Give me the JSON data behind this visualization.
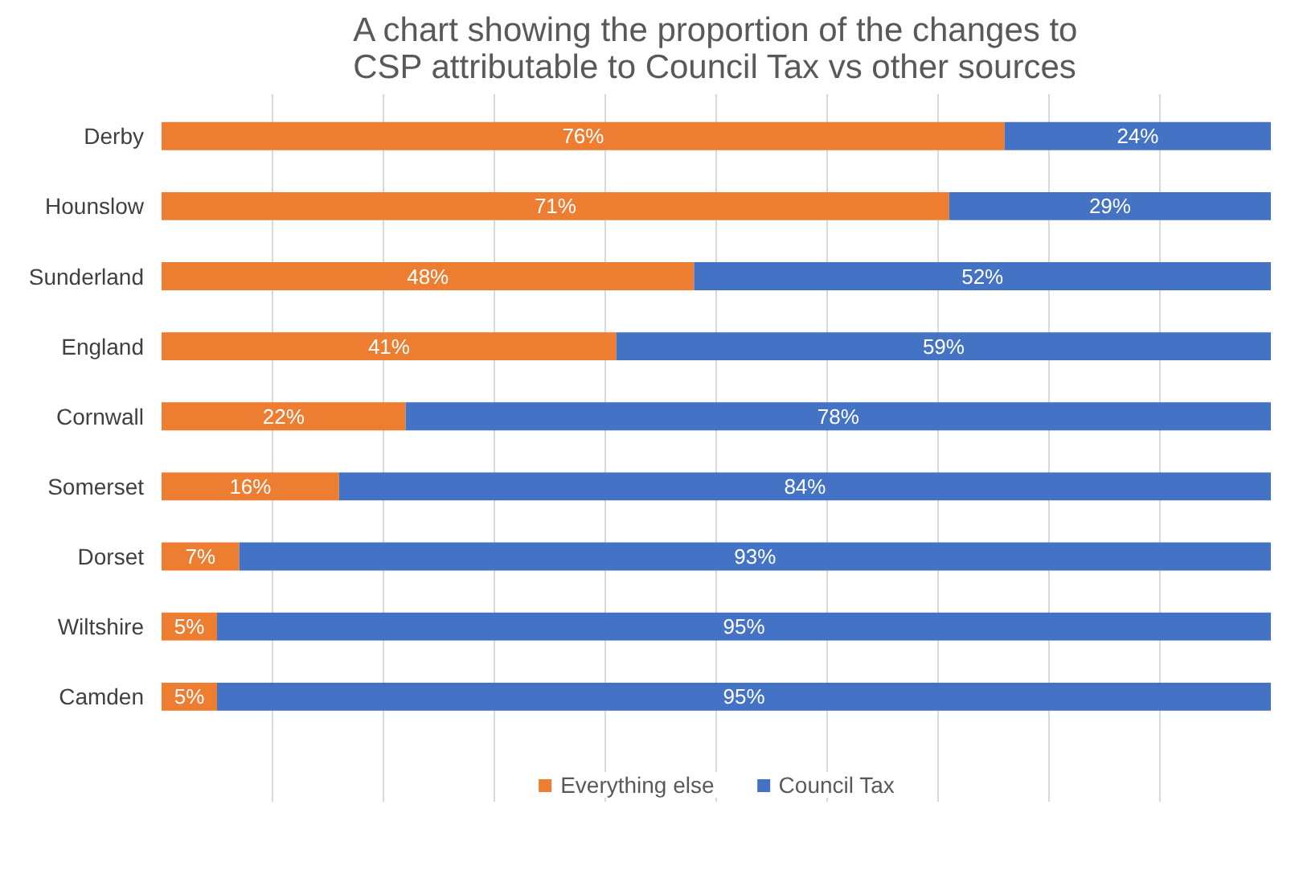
{
  "chart_data": {
    "type": "bar",
    "orientation": "horizontal",
    "stacked": true,
    "title": "A chart showing the proportion of the changes to CSP attributable to Council Tax vs other sources",
    "categories": [
      "Derby",
      "Hounslow",
      "Sunderland",
      "England",
      "Cornwall",
      "Somerset",
      "Dorset",
      "Wiltshire",
      "Camden"
    ],
    "series": [
      {
        "name": "Everything else",
        "color": "#ed7d31",
        "values": [
          76,
          71,
          48,
          41,
          22,
          16,
          7,
          5,
          5
        ],
        "value_labels": [
          "76%",
          "71%",
          "48%",
          "41%",
          "22%",
          "16%",
          "7%",
          "5%",
          "5%"
        ]
      },
      {
        "name": "Council Tax",
        "color": "#4472c4",
        "values": [
          24,
          29,
          52,
          59,
          78,
          84,
          93,
          95,
          95
        ],
        "value_labels": [
          "24%",
          "29%",
          "52%",
          "59%",
          "78%",
          "84%",
          "93%",
          "95%",
          "95%"
        ]
      }
    ],
    "xlim": [
      0,
      100
    ],
    "xticks": [
      {
        "value": 10,
        "label": null
      },
      {
        "value": 20,
        "label": null
      },
      {
        "value": 30,
        "label": null
      },
      {
        "value": 40,
        "label": null
      },
      {
        "value": 50,
        "label": null
      },
      {
        "value": 60,
        "label": null
      },
      {
        "value": 70,
        "label": null
      },
      {
        "value": 80,
        "label": null
      },
      {
        "value": 90,
        "label": null
      }
    ],
    "grid": "x",
    "tick_labels": "y",
    "legend": "bottom"
  }
}
